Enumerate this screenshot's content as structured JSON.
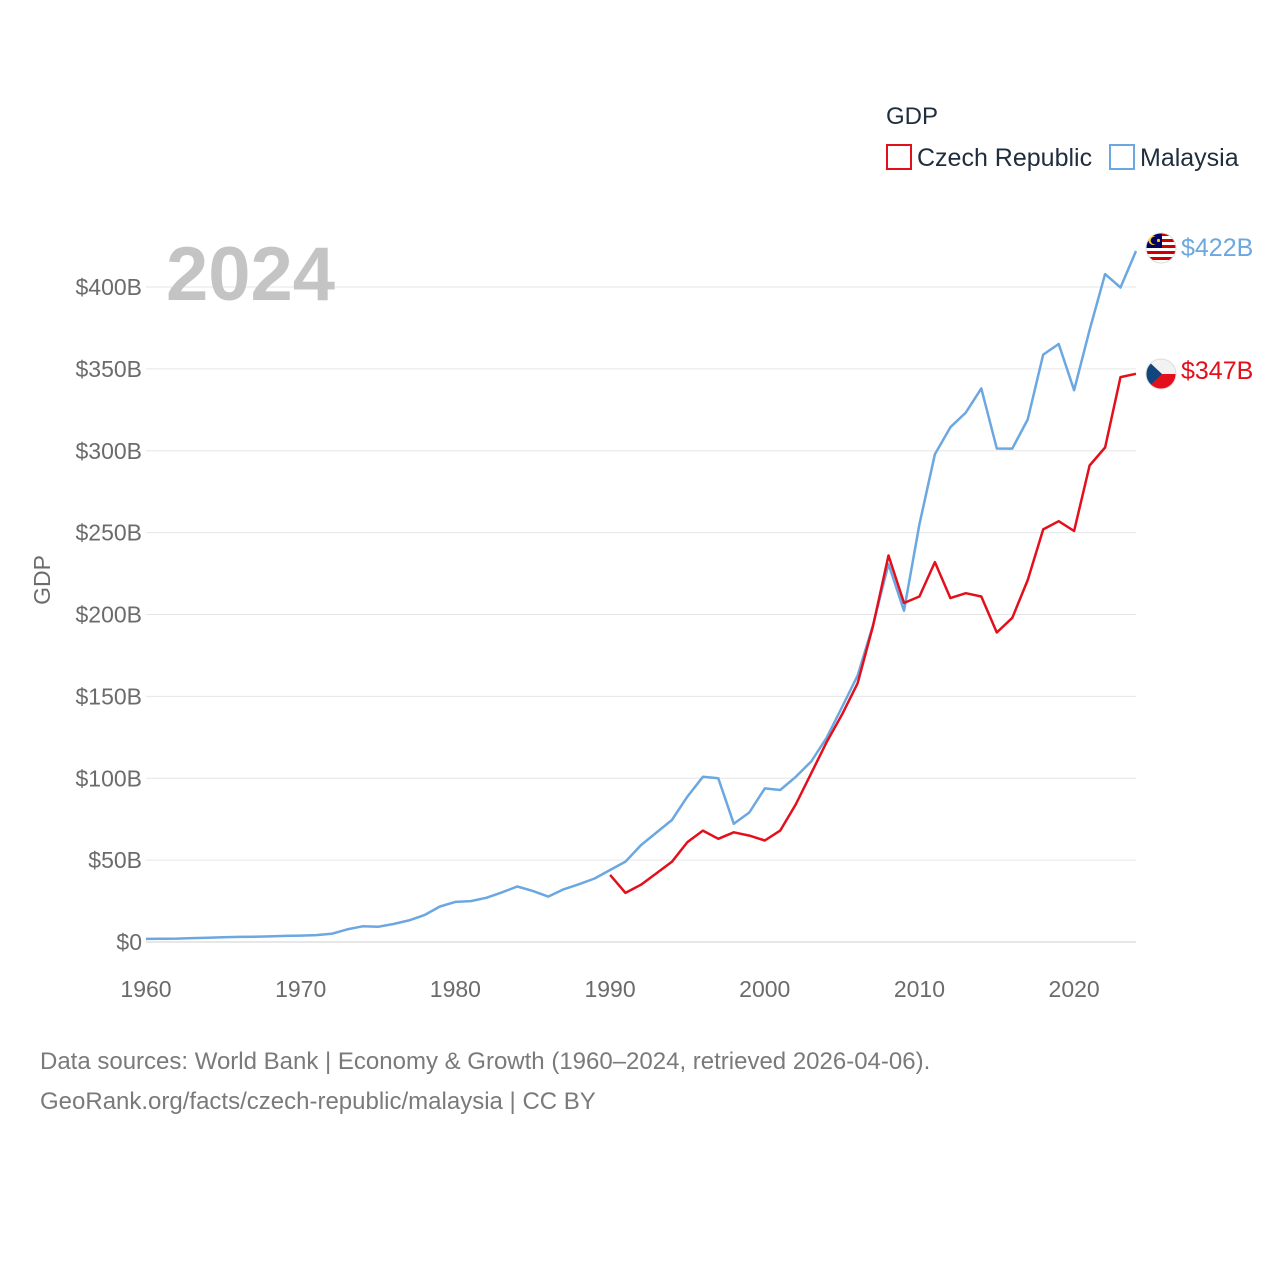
{
  "chart_data": {
    "type": "line",
    "ylabel": "GDP",
    "legend_title": "GDP",
    "legend_position": "top-right",
    "year_label": "2024",
    "grid": true,
    "xlim": [
      1960,
      2024
    ],
    "ylim": [
      0,
      420
    ],
    "y_ticks": [
      0,
      50,
      100,
      150,
      200,
      250,
      300,
      350,
      400
    ],
    "y_tick_labels": [
      "$0",
      "$50B",
      "$100B",
      "$150B",
      "$200B",
      "$250B",
      "$300B",
      "$350B",
      "$400B"
    ],
    "x_ticks": [
      1960,
      1970,
      1980,
      1990,
      2000,
      2010,
      2020
    ],
    "x_tick_labels": [
      "1960",
      "1970",
      "1980",
      "1990",
      "2000",
      "2010",
      "2020"
    ],
    "series": [
      {
        "name": "Czech Republic",
        "color": "#e3101c",
        "end_label": "$347B",
        "flag": "czech-flag",
        "x": [
          1990,
          1991,
          1992,
          1993,
          1994,
          1995,
          1996,
          1997,
          1998,
          1999,
          2000,
          2001,
          2002,
          2003,
          2004,
          2005,
          2006,
          2007,
          2008,
          2009,
          2010,
          2011,
          2012,
          2013,
          2014,
          2015,
          2016,
          2017,
          2018,
          2019,
          2020,
          2021,
          2022,
          2023,
          2024
        ],
        "values": [
          41,
          30,
          35,
          42,
          49,
          61,
          68,
          63,
          67,
          65,
          62,
          68,
          84,
          103,
          122,
          139,
          158,
          193,
          236,
          207,
          211,
          232,
          210,
          213,
          211,
          189,
          198,
          221,
          252,
          257,
          251,
          291,
          302,
          345,
          347
        ]
      },
      {
        "name": "Malaysia",
        "color": "#6ba7e0",
        "end_label": "$422B",
        "flag": "malaysia-flag",
        "x": [
          1960,
          1961,
          1962,
          1963,
          1964,
          1965,
          1966,
          1967,
          1968,
          1969,
          1970,
          1971,
          1972,
          1973,
          1974,
          1975,
          1976,
          1977,
          1978,
          1979,
          1980,
          1981,
          1982,
          1983,
          1984,
          1985,
          1986,
          1987,
          1988,
          1989,
          1990,
          1991,
          1992,
          1993,
          1994,
          1995,
          1996,
          1997,
          1998,
          1999,
          2000,
          2001,
          2002,
          2003,
          2004,
          2005,
          2006,
          2007,
          2008,
          2009,
          2010,
          2011,
          2012,
          2013,
          2014,
          2015,
          2016,
          2017,
          2018,
          2019,
          2020,
          2021,
          2022,
          2023,
          2024
        ],
        "values": [
          1.9,
          2.0,
          2.1,
          2.4,
          2.6,
          2.9,
          3.1,
          3.2,
          3.4,
          3.7,
          3.9,
          4.2,
          5.0,
          7.7,
          9.6,
          9.3,
          11.0,
          13.2,
          16.4,
          21.7,
          24.5,
          25.0,
          27.0,
          30.3,
          33.9,
          31.2,
          27.7,
          32.2,
          35.3,
          38.8,
          44.0,
          49.1,
          59.2,
          66.9,
          74.5,
          88.8,
          100.9,
          100.0,
          72.2,
          79.1,
          93.8,
          92.8,
          100.8,
          110.2,
          124.7,
          143.5,
          162.7,
          193.5,
          230.8,
          202.3,
          255.0,
          297.9,
          314.4,
          323.3,
          338.1,
          301.4,
          301.3,
          319.1,
          358.7,
          365.2,
          337.0,
          373.8,
          407.9,
          399.7,
          422.0
        ]
      }
    ]
  },
  "footer": {
    "line1": "Data sources: World Bank | Economy & Growth (1960–2024, retrieved 2026-04-06).",
    "line2": "GeoRank.org/facts/czech-republic/malaysia | CC BY"
  }
}
